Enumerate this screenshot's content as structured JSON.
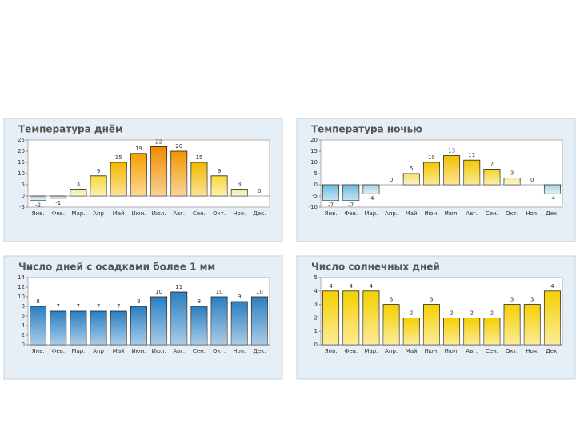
{
  "chart_data": [
    {
      "type": "bar",
      "title": "Температура днём",
      "categories": [
        "Янв.",
        "Фев.",
        "Мар.",
        "Апр",
        "Май",
        "Июн.",
        "Июл.",
        "Авг.",
        "Сен.",
        "Окт.",
        "Ноя.",
        "Дек."
      ],
      "values": [
        -2,
        -1,
        3,
        9,
        15,
        19,
        22,
        20,
        15,
        9,
        3,
        0
      ],
      "colors": [
        "#b8d4e0",
        "#b8d4e0",
        "#f5ec9a",
        "#f7d83a",
        "#f5b800",
        "#f5a000",
        "#f08c00",
        "#f29500",
        "#f5b800",
        "#f7d83a",
        "#f5ec9a",
        "#f5ec9a"
      ],
      "ylim": [
        -5,
        25
      ],
      "yticks": [
        -5,
        0,
        5,
        10,
        15,
        20,
        25
      ]
    },
    {
      "type": "bar",
      "title": "Температура ночью",
      "categories": [
        "Янв.",
        "Фев.",
        "Мар.",
        "Апр.",
        "Май",
        "Июн.",
        "Июл.",
        "Авг.",
        "Сен.",
        "Окт.",
        "Ноя.",
        "Дек."
      ],
      "values": [
        -7,
        -7,
        -4,
        0,
        5,
        10,
        13,
        11,
        7,
        3,
        0,
        -4
      ],
      "colors": [
        "#6bbde0",
        "#6bbde0",
        "#a8d4e0",
        "#f7ec9a",
        "#f7e070",
        "#f5c800",
        "#f5c000",
        "#f5c800",
        "#f5d430",
        "#f7ec9a",
        "#f7ec9a",
        "#a8d4e0"
      ],
      "ylim": [
        -10,
        20
      ],
      "yticks": [
        -10,
        -5,
        0,
        5,
        10,
        15,
        20
      ]
    },
    {
      "type": "bar",
      "title": "Число дней с осадками более 1 мм",
      "categories": [
        "Янв.",
        "Фев.",
        "Мар.",
        "Апр",
        "Май",
        "Июн.",
        "Июл.",
        "Авг.",
        "Сен.",
        "Окт.",
        "Ноя.",
        "Дек."
      ],
      "values": [
        8,
        7,
        7,
        7,
        7,
        8,
        10,
        11,
        8,
        10,
        9,
        10
      ],
      "color": "#2a7fc2",
      "ylim": [
        0,
        14
      ],
      "yticks": [
        0,
        2,
        4,
        6,
        8,
        10,
        12,
        14
      ]
    },
    {
      "type": "bar",
      "title": "Число солнечных дней",
      "categories": [
        "Янв.",
        "Фев.",
        "Мар.",
        "Апр.",
        "Май",
        "Июн.",
        "Июл.",
        "Авг.",
        "Сен.",
        "Окт.",
        "Ноя.",
        "Дек."
      ],
      "values": [
        4,
        4,
        4,
        3,
        2,
        3,
        2,
        2,
        2,
        3,
        3,
        4
      ],
      "color": "#f5d000",
      "ylim": [
        0,
        5
      ],
      "yticks": [
        0,
        1,
        2,
        3,
        4,
        5
      ]
    }
  ]
}
